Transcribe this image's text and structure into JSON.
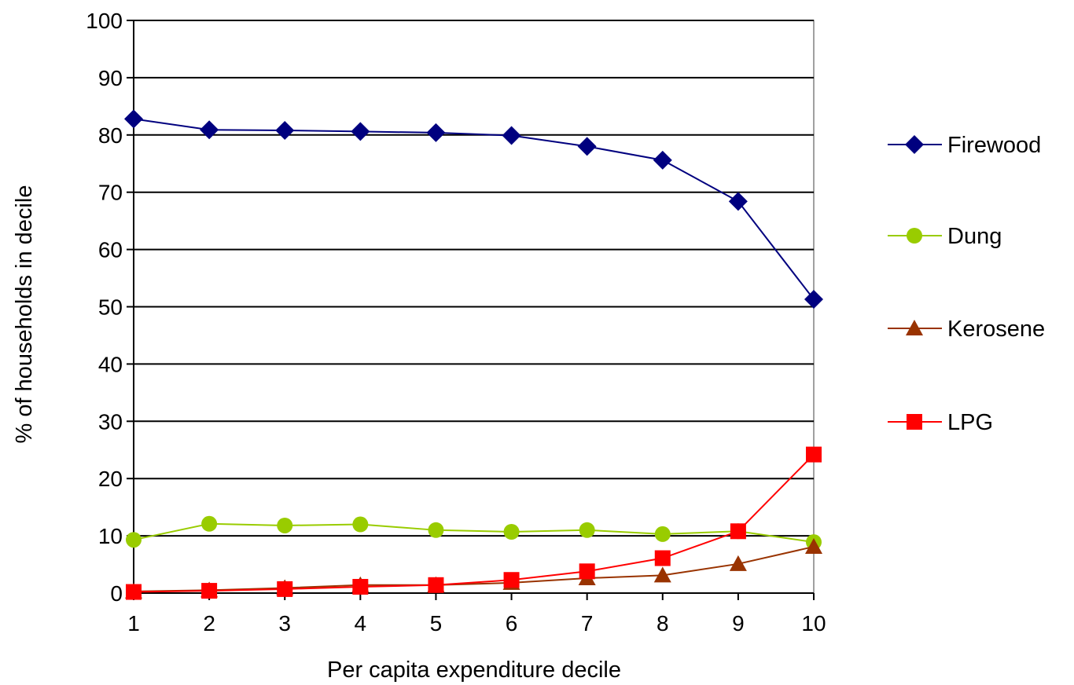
{
  "chart_data": {
    "type": "line",
    "title": "",
    "xlabel": "Per capita expenditure decile",
    "ylabel": "% of households in decile",
    "categories": [
      "1",
      "2",
      "3",
      "4",
      "5",
      "6",
      "7",
      "8",
      "9",
      "10"
    ],
    "ylim": [
      0,
      100
    ],
    "yticks": [
      "0",
      "10",
      "20",
      "30",
      "40",
      "50",
      "60",
      "70",
      "80",
      "90",
      "100"
    ],
    "grid": "horizontal",
    "legend_position": "right",
    "series": [
      {
        "name": "Firewood",
        "values": [
          82.8,
          80.9,
          80.8,
          80.6,
          80.4,
          79.9,
          78.0,
          75.6,
          68.4,
          51.3
        ],
        "color": "#00007f",
        "marker": "diamond"
      },
      {
        "name": "Dung",
        "values": [
          9.3,
          12.1,
          11.8,
          12.0,
          11.0,
          10.7,
          11.0,
          10.3,
          10.8,
          8.9
        ],
        "color": "#99cc00",
        "marker": "circle"
      },
      {
        "name": "Kerosene",
        "values": [
          0.3,
          0.5,
          0.9,
          1.4,
          1.4,
          1.8,
          2.6,
          3.1,
          5.1,
          8.1
        ],
        "color": "#993300",
        "marker": "triangle"
      },
      {
        "name": "LPG",
        "values": [
          0.2,
          0.4,
          0.7,
          1.1,
          1.4,
          2.3,
          3.8,
          6.1,
          10.8,
          24.2
        ],
        "color": "#ff0000",
        "marker": "square"
      }
    ]
  }
}
